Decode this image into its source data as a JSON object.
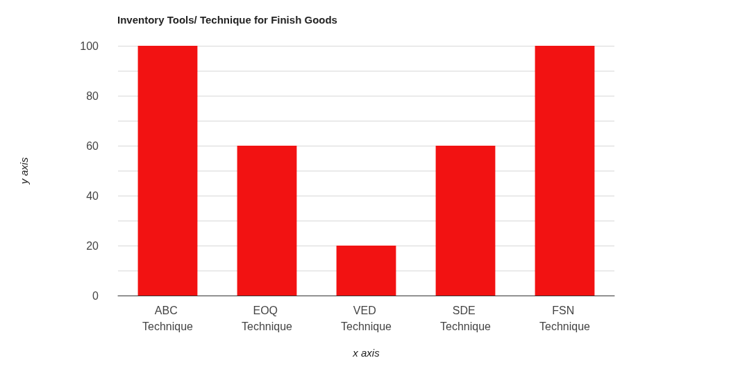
{
  "chart_data": {
    "type": "bar",
    "title": "Inventory Tools/ Technique for Finish Goods",
    "xlabel": "x axis",
    "ylabel": "y axis",
    "categories": [
      "ABC Technique",
      "EOQ Technique",
      "VED Technique",
      "SDE Technique",
      "FSN Technique"
    ],
    "values": [
      100,
      60,
      20,
      60,
      100
    ],
    "color": "#f21212",
    "ylim": [
      0,
      100
    ],
    "yticks": [
      0,
      {
        "value": 10,
        "label": null
      },
      20,
      {
        "value": 30,
        "label": null
      },
      40,
      {
        "value": 50,
        "label": null
      },
      60,
      {
        "value": 70,
        "label": null
      },
      80,
      {
        "value": 90,
        "label": null
      },
      100
    ],
    "grid": "y"
  }
}
